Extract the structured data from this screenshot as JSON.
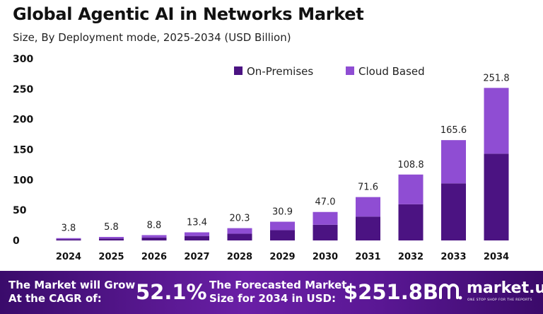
{
  "header": {
    "title": "Global Agentic AI in Networks Market",
    "subtitle": "Size, By Deployment mode, 2025-2034 (USD Billion)"
  },
  "colors": {
    "on_premises": "#4b1382",
    "cloud_based": "#8f4dd3",
    "footer_start": "#3a0b6b",
    "footer_end": "#6a1fa6"
  },
  "chart_data": {
    "type": "bar",
    "stacked": true,
    "categories": [
      "2024",
      "2025",
      "2026",
      "2027",
      "2028",
      "2029",
      "2030",
      "2031",
      "2032",
      "2033",
      "2034"
    ],
    "series": [
      {
        "name": "On-Premises",
        "values": [
          2.1,
          3.2,
          4.9,
          7.4,
          11.2,
          17.0,
          25.9,
          39.4,
          59.8,
          94.2,
          143.2
        ]
      },
      {
        "name": "Cloud Based",
        "values": [
          1.7,
          2.6,
          3.9,
          6.0,
          9.1,
          13.9,
          21.1,
          32.2,
          49.0,
          71.4,
          108.6
        ]
      }
    ],
    "totals": [
      "3.8",
      "5.8",
      "8.8",
      "13.4",
      "20.3",
      "30.9",
      "47.0",
      "71.6",
      "108.8",
      "165.6",
      "251.8"
    ],
    "yticks": [
      0,
      50,
      100,
      150,
      200,
      250,
      300
    ],
    "ylim": [
      0,
      300
    ],
    "grid": false,
    "legend_position": "top-right"
  },
  "footer": {
    "cagr_text_line1": "The Market will Grow",
    "cagr_text_line2": "At the CAGR of:",
    "cagr_value": "52.1%",
    "forecast_text_line1": "The Forecasted Market",
    "forecast_text_line2": "Size for 2034 in USD:",
    "forecast_value": "$251.8B",
    "logo_name": "market.us",
    "logo_tagline": "ONE STOP SHOP FOR THE REPORTS"
  }
}
